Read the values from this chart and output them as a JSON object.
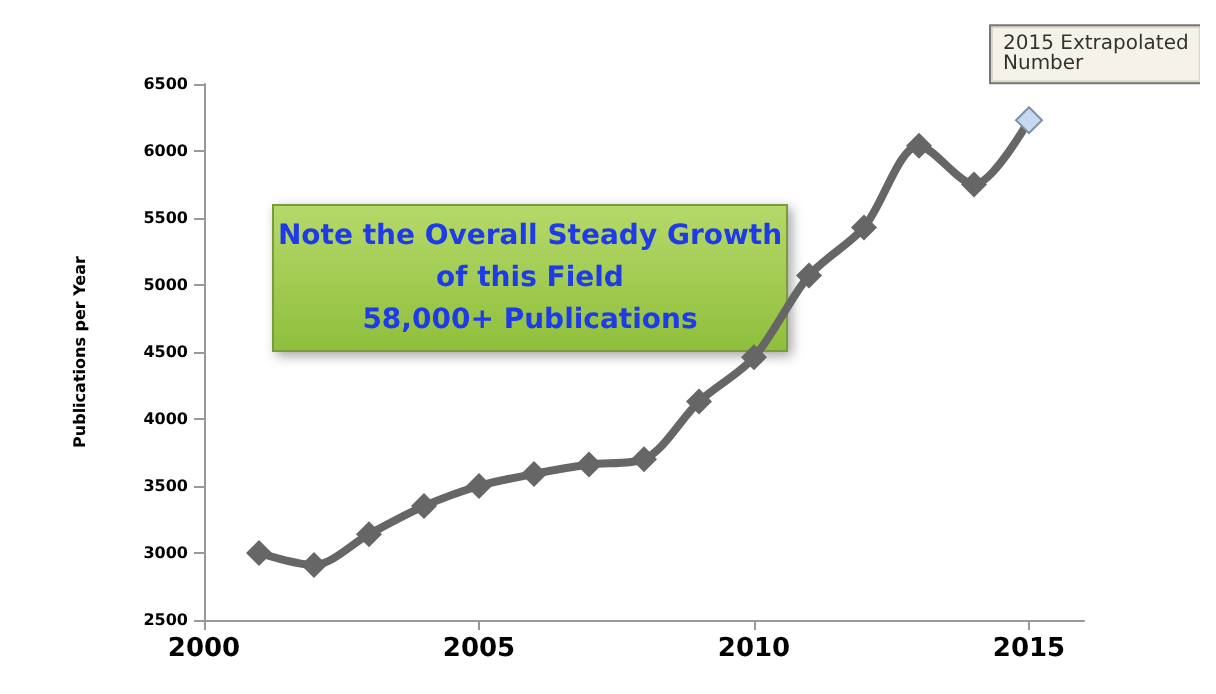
{
  "chart_data": {
    "type": "line",
    "ylabel": "Publications per Year",
    "x": [
      2001,
      2002,
      2003,
      2004,
      2005,
      2006,
      2007,
      2008,
      2009,
      2010,
      2011,
      2012,
      2013,
      2014,
      2015
    ],
    "series": [
      {
        "color": "#666666",
        "values": [
          3000,
          2910,
          3140,
          3350,
          3500,
          3590,
          3660,
          3700,
          4130,
          4460,
          5070,
          5430,
          6040,
          5750,
          6230
        ],
        "colors": [
          "#666666",
          "#666666",
          "#666666",
          "#666666",
          "#666666",
          "#666666",
          "#666666",
          "#666666",
          "#666666",
          "#666666",
          "#666666",
          "#666666",
          "#666666",
          "#666666",
          "#c6d9f1"
        ]
      }
    ],
    "xlim": [
      2000,
      2016
    ],
    "xticks": [
      2000,
      2005,
      2010,
      2015
    ],
    "ylim": [
      2500,
      6500
    ],
    "yticks": [
      2500,
      3000,
      3500,
      4000,
      4500,
      5000,
      5500,
      6000,
      6500
    ],
    "marker": "diamond",
    "line_style": "solid",
    "grid": false,
    "annotations": [
      "Note the Overall Steady Growth\nof this Field\n58,000+ Publications",
      {
        "text": "2015 Extrapolated\nNumber",
        "x": 2015,
        "y": 6230
      }
    ]
  }
}
